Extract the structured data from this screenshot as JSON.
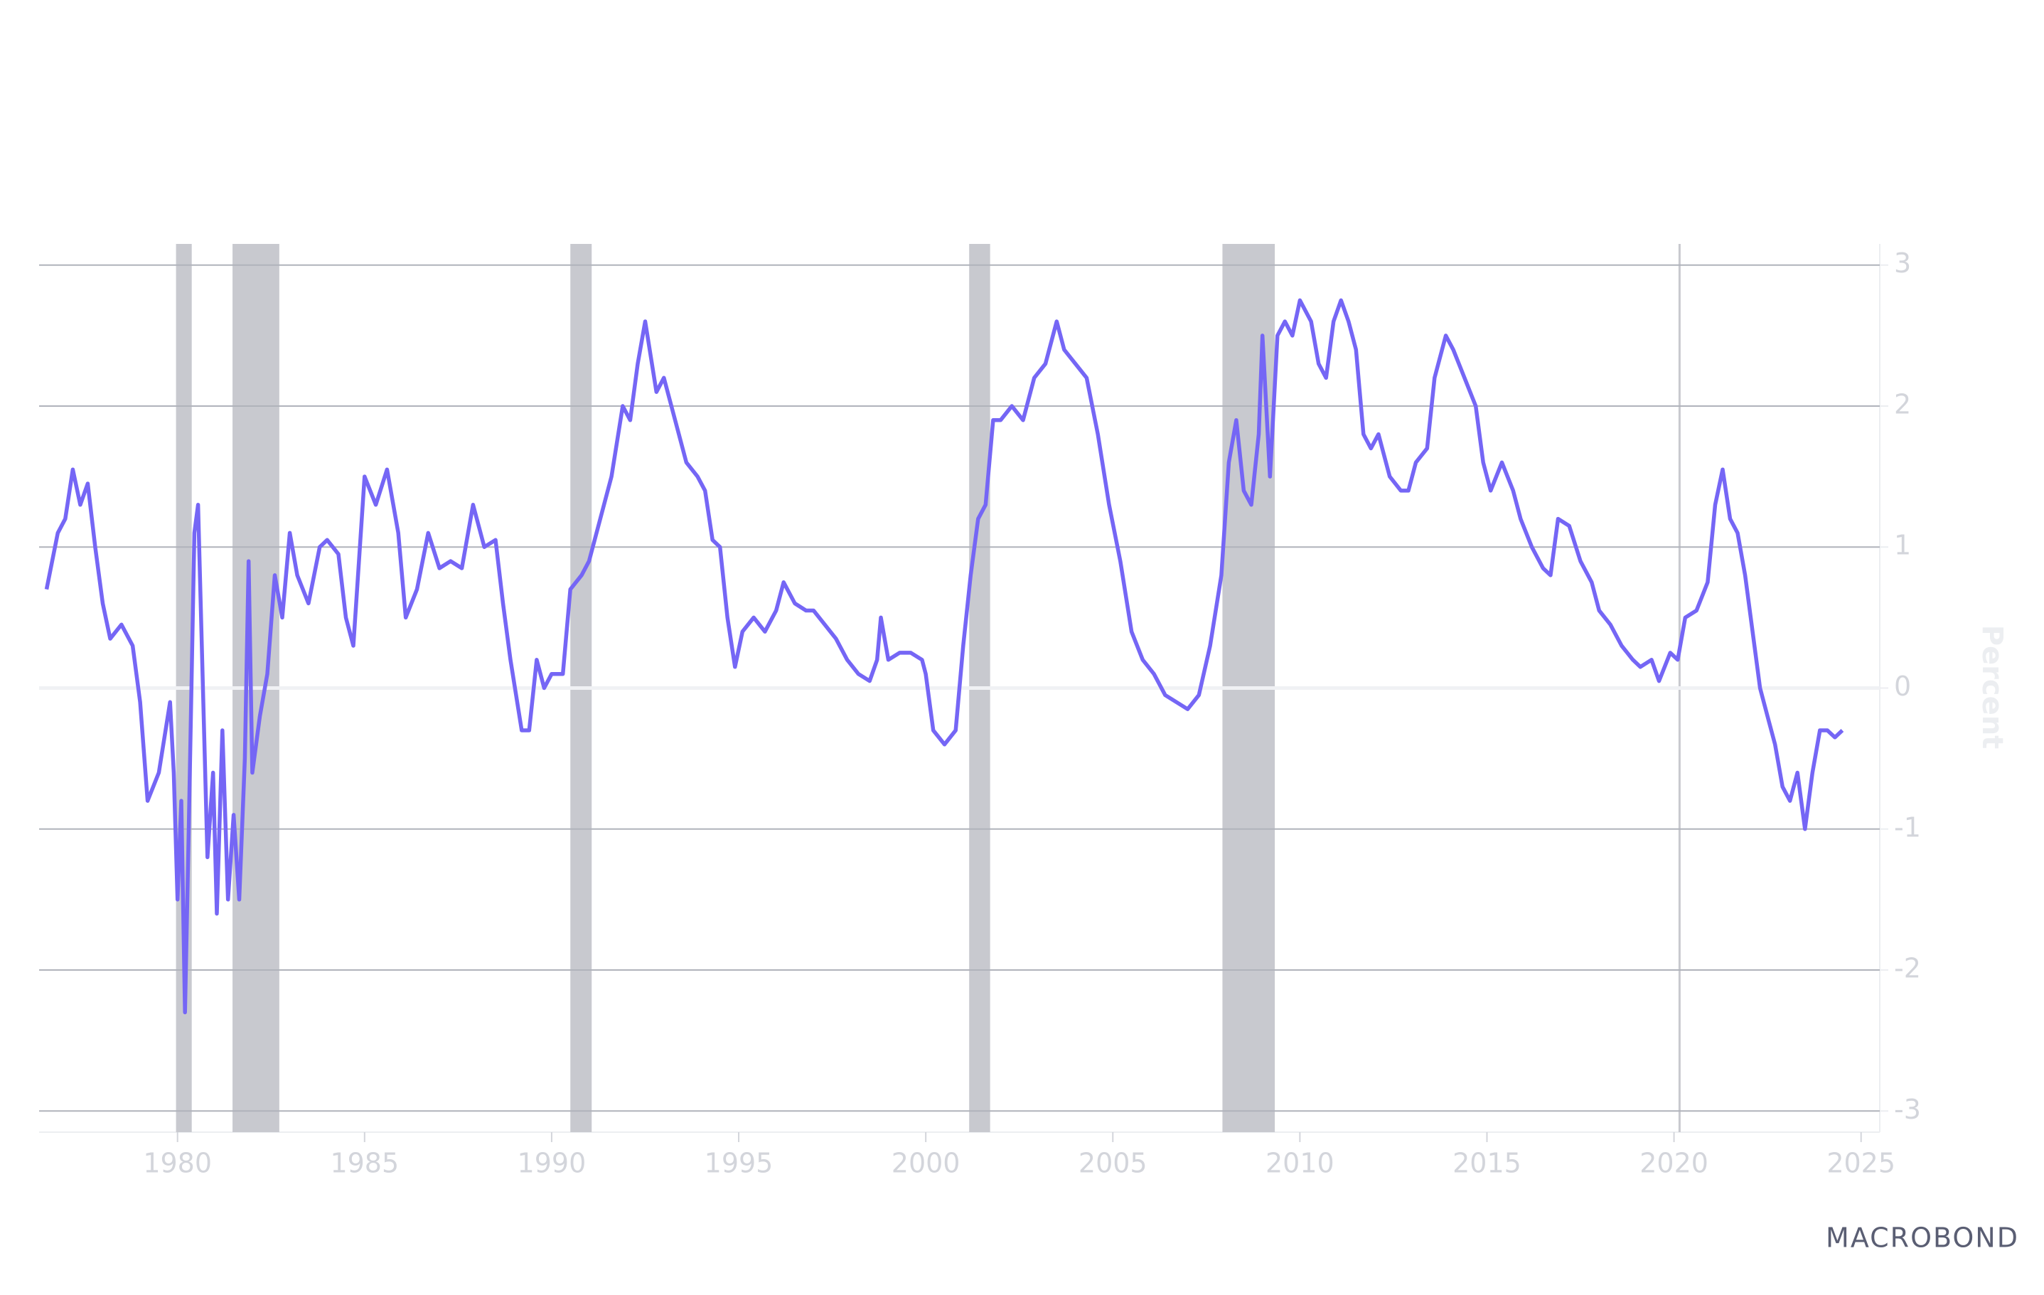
{
  "chart_data": {
    "type": "line",
    "x": [
      1976.5,
      1976.8,
      1977.0,
      1977.2,
      1977.4,
      1977.6,
      1977.8,
      1978.0,
      1978.2,
      1978.5,
      1978.8,
      1979.0,
      1979.2,
      1979.5,
      1979.8,
      1979.9,
      1980.0,
      1980.1,
      1980.2,
      1980.3,
      1980.45,
      1980.55,
      1980.7,
      1980.8,
      1980.95,
      1981.05,
      1981.2,
      1981.35,
      1981.5,
      1981.65,
      1981.8,
      1981.9,
      1982.0,
      1982.2,
      1982.4,
      1982.6,
      1982.8,
      1983.0,
      1983.2,
      1983.5,
      1983.8,
      1984.0,
      1984.3,
      1984.5,
      1984.7,
      1985.0,
      1985.3,
      1985.6,
      1985.9,
      1986.1,
      1986.4,
      1986.7,
      1987.0,
      1987.3,
      1987.6,
      1987.9,
      1988.2,
      1988.5,
      1988.7,
      1988.9,
      1989.2,
      1989.4,
      1989.6,
      1989.8,
      1990.0,
      1990.3,
      1990.5,
      1990.8,
      1991.0,
      1991.3,
      1991.6,
      1991.9,
      1992.1,
      1992.3,
      1992.5,
      1992.8,
      1993.0,
      1993.3,
      1993.6,
      1993.9,
      1994.1,
      1994.3,
      1994.5,
      1994.7,
      1994.9,
      1995.1,
      1995.4,
      1995.7,
      1996.0,
      1996.2,
      1996.5,
      1996.8,
      1997.0,
      1997.3,
      1997.6,
      1997.9,
      1998.2,
      1998.5,
      1998.7,
      1998.8,
      1999.0,
      1999.3,
      1999.6,
      1999.9,
      2000.0,
      2000.2,
      2000.5,
      2000.8,
      2001.0,
      2001.2,
      2001.4,
      2001.6,
      2001.8,
      2002.0,
      2002.3,
      2002.6,
      2002.9,
      2003.2,
      2003.5,
      2003.7,
      2004.0,
      2004.3,
      2004.6,
      2004.9,
      2005.2,
      2005.5,
      2005.8,
      2006.1,
      2006.4,
      2006.7,
      2007.0,
      2007.3,
      2007.6,
      2007.9,
      2008.1,
      2008.3,
      2008.5,
      2008.7,
      2008.9,
      2009.0,
      2009.2,
      2009.4,
      2009.6,
      2009.8,
      2010.0,
      2010.3,
      2010.5,
      2010.7,
      2010.9,
      2011.1,
      2011.3,
      2011.5,
      2011.7,
      2011.9,
      2012.1,
      2012.4,
      2012.7,
      2012.9,
      2013.1,
      2013.4,
      2013.6,
      2013.9,
      2014.1,
      2014.4,
      2014.7,
      2014.9,
      2015.1,
      2015.4,
      2015.7,
      2015.9,
      2016.2,
      2016.5,
      2016.7,
      2016.9,
      2017.2,
      2017.5,
      2017.8,
      2018.0,
      2018.3,
      2018.6,
      2018.9,
      2019.1,
      2019.4,
      2019.6,
      2019.9,
      2020.1,
      2020.3,
      2020.6,
      2020.9,
      2021.1,
      2021.3,
      2021.5,
      2021.7,
      2021.9,
      2022.1,
      2022.3,
      2022.5,
      2022.7,
      2022.9,
      2023.1,
      2023.3,
      2023.5,
      2023.7,
      2023.9,
      2024.1,
      2024.3,
      2024.5
    ],
    "values": [
      0.7,
      1.1,
      1.2,
      1.55,
      1.3,
      1.45,
      1.0,
      0.6,
      0.35,
      0.45,
      0.3,
      -0.1,
      -0.8,
      -0.6,
      -0.1,
      -0.6,
      -1.5,
      -0.8,
      -2.3,
      -1.0,
      1.1,
      1.3,
      -0.2,
      -1.2,
      -0.6,
      -1.6,
      -0.3,
      -1.5,
      -0.9,
      -1.5,
      -0.5,
      0.9,
      -0.6,
      -0.2,
      0.1,
      0.8,
      0.5,
      1.1,
      0.8,
      0.6,
      1.0,
      1.05,
      0.95,
      0.5,
      0.3,
      1.5,
      1.3,
      1.55,
      1.1,
      0.5,
      0.7,
      1.1,
      0.85,
      0.9,
      0.85,
      1.3,
      1.0,
      1.05,
      0.6,
      0.2,
      -0.3,
      -0.3,
      0.2,
      0.0,
      0.1,
      0.1,
      0.7,
      0.8,
      0.9,
      1.2,
      1.5,
      2.0,
      1.9,
      2.3,
      2.6,
      2.1,
      2.2,
      1.9,
      1.6,
      1.5,
      1.4,
      1.05,
      1.0,
      0.5,
      0.15,
      0.4,
      0.5,
      0.4,
      0.55,
      0.75,
      0.6,
      0.55,
      0.55,
      0.45,
      0.35,
      0.2,
      0.1,
      0.05,
      0.2,
      0.5,
      0.2,
      0.25,
      0.25,
      0.2,
      0.1,
      -0.3,
      -0.4,
      -0.3,
      0.3,
      0.8,
      1.2,
      1.3,
      1.9,
      1.9,
      2.0,
      1.9,
      2.2,
      2.3,
      2.6,
      2.4,
      2.3,
      2.2,
      1.8,
      1.3,
      0.9,
      0.4,
      0.2,
      0.1,
      -0.05,
      -0.1,
      -0.15,
      -0.05,
      0.3,
      0.8,
      1.6,
      1.9,
      1.4,
      1.3,
      1.8,
      2.5,
      1.5,
      2.5,
      2.6,
      2.5,
      2.75,
      2.6,
      2.3,
      2.2,
      2.6,
      2.75,
      2.6,
      2.4,
      1.8,
      1.7,
      1.8,
      1.5,
      1.4,
      1.4,
      1.6,
      1.7,
      2.2,
      2.5,
      2.4,
      2.2,
      2.0,
      1.6,
      1.4,
      1.6,
      1.4,
      1.2,
      1.0,
      0.85,
      0.8,
      1.2,
      1.15,
      0.9,
      0.75,
      0.55,
      0.45,
      0.3,
      0.2,
      0.15,
      0.2,
      0.05,
      0.25,
      0.2,
      0.5,
      0.55,
      0.75,
      1.3,
      1.55,
      1.2,
      1.1,
      0.8,
      0.4,
      0.0,
      -0.2,
      -0.4,
      -0.7,
      -0.8,
      -0.6,
      -1.0,
      -0.6,
      -0.3,
      -0.3,
      -0.35,
      -0.3
    ],
    "color": "#7566f5",
    "recessions": [
      [
        1979.96,
        1980.38
      ],
      [
        1981.47,
        1982.72
      ],
      [
        1990.5,
        1991.07
      ],
      [
        2001.16,
        2001.72
      ],
      [
        2007.93,
        2009.33
      ],
      [
        2020.12,
        2020.17
      ]
    ],
    "recession_color": "#c8c9cf",
    "xlim": [
      1976.3,
      2025.5
    ],
    "xticks": [
      1980,
      1985,
      1990,
      1995,
      2000,
      2005,
      2010,
      2015,
      2020,
      2025
    ],
    "ylim": [
      -3.15,
      3.15
    ],
    "yticks": [
      -3,
      -2,
      -1,
      0,
      1,
      2,
      3
    ],
    "ylabel": "Percent",
    "grid": true
  },
  "logo": "MACROBOND"
}
